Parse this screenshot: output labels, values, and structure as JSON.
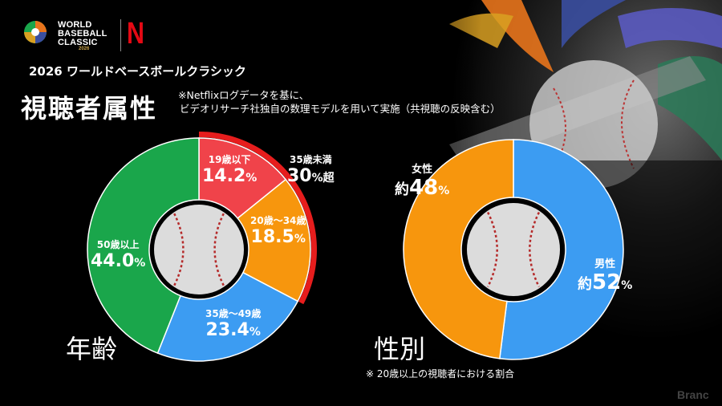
{
  "header": {
    "logo_text": "WORLD\nBASEBALL\nCLASSIC",
    "logo_year": "2026",
    "netflix_mark": "N",
    "subtitle": "2026 ワールドベースボールクラシック",
    "title": "視聴者属性",
    "note_line1": "※Netflixログデータを基に、",
    "note_line2": "ビデオリサーチ社独自の数理モデルを用いて実施（共視聴の反映含む）"
  },
  "colors": {
    "green": "#1aa64b",
    "red": "#f0434a",
    "orange": "#f7960d",
    "blue": "#3c9cf2",
    "highlight": "#e61d1d"
  },
  "chart_data": [
    {
      "type": "pie",
      "variant": "donut",
      "label": "年齢",
      "categories": [
        "19歳以下",
        "20歳～34歳",
        "35歳～49歳",
        "50歳以上"
      ],
      "values": [
        14.2,
        18.5,
        23.4,
        44.0
      ],
      "value_labels": [
        "14.2",
        "18.5",
        "23.4",
        "44.0"
      ],
      "unit": "%",
      "colors": [
        "#f0434a",
        "#f7960d",
        "#3c9cf2",
        "#1aa64b"
      ],
      "callout": {
        "category": "35歳未満",
        "value": "30",
        "suffix": "%超",
        "covers": [
          "19歳以下",
          "20歳～34歳"
        ]
      }
    },
    {
      "type": "pie",
      "variant": "donut",
      "label": "性別",
      "categories": [
        "男性",
        "女性"
      ],
      "values": [
        52,
        48
      ],
      "value_labels": [
        "52",
        "48"
      ],
      "prefix": "約",
      "unit": "%",
      "colors": [
        "#3c9cf2",
        "#f7960d"
      ],
      "footnote": "※ 20歳以上の視聴者における割合"
    }
  ],
  "watermark": "Branc"
}
